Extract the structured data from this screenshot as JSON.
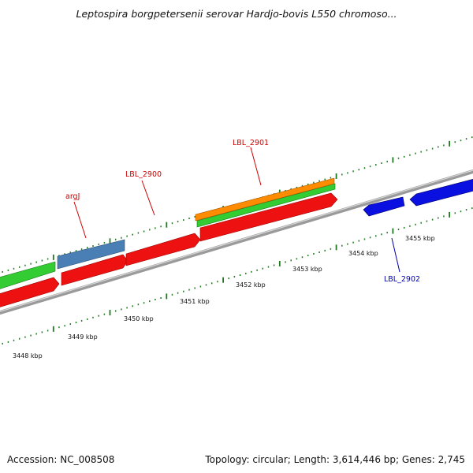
{
  "title": "Leptospira borgpetersenii serovar Hardjo-bovis L550 chromoso...",
  "footer": {
    "accession": "Accession: NC_008508",
    "summary": "Topology: circular; Length: 3,614,446 bp; Genes: 2,745"
  },
  "colors": {
    "backbone": "#8c8c8c",
    "tick_dots": "#1e7a1e",
    "forward_cds": "#ee1111",
    "forward_gene": "#33cc33",
    "forward_rna": "#ff8c00",
    "forward_other": "#4a7fb5",
    "reverse_cds": "#0a10e0",
    "label_forward": "#cc0000",
    "label_reverse": "#0000aa"
  },
  "scale": {
    "unit": "kbp",
    "ticks": [
      {
        "kbp": 3448,
        "label": "3448 kbp"
      },
      {
        "kbp": 3449,
        "label": "3449 kbp"
      },
      {
        "kbp": 3450,
        "label": "3450 kbp"
      },
      {
        "kbp": 3451,
        "label": "3451 kbp"
      },
      {
        "kbp": 3452,
        "label": "3452 kbp"
      },
      {
        "kbp": 3453,
        "label": "3453 kbp"
      },
      {
        "kbp": 3454,
        "label": "3454 kbp"
      },
      {
        "kbp": 3455,
        "label": "3455 kbp"
      }
    ]
  },
  "gene_labels": [
    {
      "name": "argJ",
      "strand": "forward"
    },
    {
      "name": "LBL_2900",
      "strand": "forward"
    },
    {
      "name": "LBL_2901",
      "strand": "forward"
    },
    {
      "name": "LBL_2902",
      "strand": "reverse"
    }
  ]
}
